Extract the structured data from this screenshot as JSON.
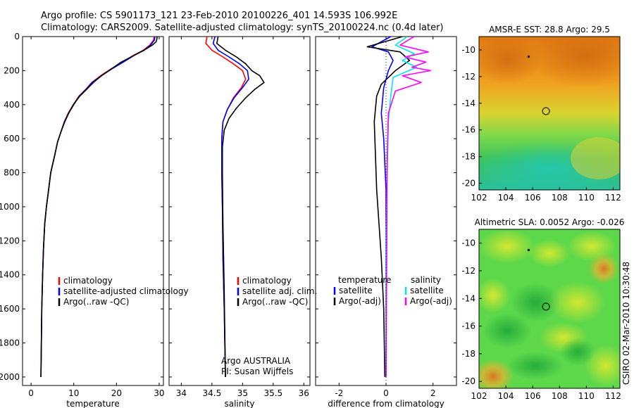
{
  "header": {
    "line1": "Argo profile: CS 5901173_121 23-Feb-2010 20100226_401 14.593S 106.992E",
    "line2": "Climatology: CARS2009. Satellite-adjusted climatology: synTS_20100224.nc (0.4d later)"
  },
  "footer": {
    "credit": "CSIRO 02-Mar-2010 10:30:48"
  },
  "colors": {
    "climatology": "#ff0000",
    "satellite": "#0000ff",
    "argo": "#000000",
    "salinity_satellite": "#00e5ee",
    "salinity_argo": "#ff00ff",
    "zero_line": "#0000ff"
  },
  "chart_data": [
    {
      "id": "temperature",
      "type": "line",
      "xlabel": "temperature",
      "ylabel": "",
      "xlim": [
        -2,
        31
      ],
      "ylim": [
        2050,
        0
      ],
      "xticks": [
        0,
        10,
        20,
        30
      ],
      "yticks": [
        0,
        200,
        400,
        600,
        800,
        1000,
        1200,
        1400,
        1600,
        1800,
        2000
      ],
      "legend": [
        "climatology",
        "satellite-adjusted climatology",
        "Argo(..raw -QC)"
      ],
      "series": [
        {
          "name": "climatology",
          "color": "#ff0000",
          "x": [
            28.8,
            28.7,
            27.8,
            26.3,
            24.0,
            21.4,
            18.7,
            16.3,
            14.2,
            12.8,
            11.2,
            9.9,
            8.7,
            7.8,
            7.0,
            6.2,
            5.5,
            4.6,
            4.1,
            3.6,
            3.2,
            2.9,
            2.7,
            2.5,
            2.4,
            2.3
          ],
          "y": [
            0,
            20,
            50,
            80,
            110,
            150,
            190,
            230,
            270,
            310,
            350,
            400,
            450,
            500,
            560,
            620,
            700,
            800,
            900,
            1000,
            1100,
            1250,
            1400,
            1600,
            1800,
            2000
          ]
        },
        {
          "name": "satellite-adjusted climatology",
          "color": "#0000ff",
          "x": [
            29.0,
            28.9,
            28.0,
            26.5,
            24.2,
            21.6,
            18.9,
            16.5,
            14.3,
            12.9,
            11.3,
            10.0,
            8.8,
            7.8,
            7.0,
            6.2,
            5.5,
            4.6,
            4.1,
            3.6,
            3.2,
            2.9,
            2.7,
            2.5,
            2.4,
            2.3
          ],
          "y": [
            0,
            20,
            50,
            80,
            110,
            150,
            190,
            230,
            270,
            310,
            350,
            400,
            450,
            500,
            560,
            620,
            700,
            800,
            900,
            1000,
            1100,
            1250,
            1400,
            1600,
            1800,
            2000
          ]
        },
        {
          "name": "Argo(..raw -QC)",
          "color": "#000000",
          "x": [
            29.5,
            29.5,
            29.3,
            28.4,
            26.8,
            24.2,
            21.1,
            18.8,
            16.5,
            14.6,
            13.0,
            11.4,
            9.9,
            8.8,
            7.9,
            7.0,
            6.2,
            5.5,
            4.6,
            4.1,
            3.6,
            3.2,
            2.9,
            2.7,
            2.5,
            2.4,
            2.3
          ],
          "y": [
            0,
            10,
            30,
            50,
            75,
            110,
            150,
            190,
            230,
            270,
            310,
            350,
            400,
            450,
            500,
            560,
            620,
            700,
            800,
            900,
            1000,
            1100,
            1250,
            1400,
            1600,
            1800,
            2000
          ]
        }
      ]
    },
    {
      "id": "salinity",
      "type": "line",
      "xlabel": "salinity",
      "ylabel": "",
      "xlim": [
        33.8,
        36.1
      ],
      "ylim": [
        2050,
        0
      ],
      "xticks": [
        34,
        34.5,
        35,
        35.5,
        36
      ],
      "yticks": [
        0,
        200,
        400,
        600,
        800,
        1000,
        1200,
        1400,
        1600,
        1800,
        2000
      ],
      "legend": [
        "climatology",
        "satellite adj. clim.",
        "Argo(..raw -QC)"
      ],
      "annotations": [
        "Argo AUSTRALIA",
        "PI: Susan Wijffels"
      ],
      "series": [
        {
          "name": "climatology",
          "color": "#ff0000",
          "x": [
            34.42,
            34.4,
            34.5,
            34.68,
            34.85,
            35.0,
            35.05,
            34.98,
            34.85,
            34.75,
            34.68,
            34.66,
            34.66,
            34.67,
            34.68,
            34.7,
            34.72
          ],
          "y": [
            0,
            40,
            80,
            120,
            160,
            200,
            250,
            300,
            360,
            430,
            500,
            600,
            800,
            1000,
            1300,
            1600,
            2000
          ]
        },
        {
          "name": "satellite adj. clim.",
          "color": "#0000ff",
          "x": [
            34.55,
            34.52,
            34.6,
            34.78,
            34.95,
            35.08,
            35.1,
            35.0,
            34.86,
            34.75,
            34.68,
            34.66,
            34.66,
            34.67,
            34.68,
            34.7,
            34.72
          ],
          "y": [
            0,
            40,
            80,
            120,
            160,
            200,
            250,
            300,
            360,
            430,
            500,
            600,
            800,
            1000,
            1300,
            1600,
            2000
          ]
        },
        {
          "name": "Argo(..raw -QC)",
          "color": "#000000",
          "x": [
            34.6,
            34.58,
            34.72,
            34.9,
            35.05,
            35.15,
            35.28,
            35.35,
            35.2,
            35.05,
            34.9,
            34.78,
            34.7,
            34.67,
            34.67,
            34.68,
            34.7,
            34.72
          ],
          "y": [
            0,
            40,
            80,
            120,
            160,
            200,
            230,
            270,
            310,
            360,
            420,
            480,
            550,
            650,
            800,
            1100,
            1500,
            2000
          ]
        }
      ]
    },
    {
      "id": "difference",
      "type": "line",
      "xlabel": "difference from climatology",
      "ylabel": "",
      "xlim": [
        -3,
        3
      ],
      "ylim": [
        2050,
        0
      ],
      "xticks": [
        -2,
        0,
        2
      ],
      "yticks": [
        0,
        200,
        400,
        600,
        800,
        1000,
        1200,
        1400,
        1600,
        1800,
        2000
      ],
      "legend_left_heading": "temperature",
      "legend_right_heading": "salinity",
      "legend": [
        "satellite",
        "Argo(-adj)",
        "satellite",
        "Argo(-adj)"
      ],
      "series": [
        {
          "name": "temperature satellite",
          "color": "#0000ff",
          "x": [
            0.2,
            -0.6,
            0.1,
            0.3,
            0.1,
            -0.1,
            -0.2,
            -0.1,
            0.0,
            0.0,
            0.0,
            0.0
          ],
          "y": [
            0,
            60,
            90,
            140,
            200,
            300,
            450,
            600,
            900,
            1200,
            1600,
            2000
          ]
        },
        {
          "name": "temperature Argo(-adj)",
          "color": "#000000",
          "x": [
            0.7,
            -0.8,
            0.6,
            1.0,
            0.4,
            -0.2,
            -0.4,
            -0.5,
            -0.45,
            -0.4,
            -0.3,
            -0.2,
            -0.1,
            -0.05
          ],
          "y": [
            0,
            60,
            90,
            140,
            200,
            280,
            350,
            500,
            700,
            900,
            1100,
            1300,
            1600,
            2000
          ]
        },
        {
          "name": "salinity satellite",
          "color": "#00e5ee",
          "x": [
            0.9,
            0.4,
            1.2,
            0.7,
            1.3,
            0.3,
            0.2,
            0.1,
            0.05,
            0.0,
            0.0
          ],
          "y": [
            0,
            50,
            100,
            140,
            180,
            240,
            350,
            500,
            800,
            1200,
            2000
          ]
        },
        {
          "name": "salinity Argo(-adj)",
          "color": "#ff00ff",
          "x": [
            1.2,
            0.6,
            1.8,
            0.8,
            1.7,
            1.1,
            1.9,
            0.7,
            1.5,
            0.4,
            0.1,
            0.05,
            0.0
          ],
          "y": [
            0,
            50,
            90,
            120,
            150,
            180,
            200,
            230,
            270,
            320,
            450,
            700,
            2000
          ]
        }
      ]
    },
    {
      "id": "sst-map",
      "type": "heatmap",
      "title": "AMSR-E SST: 28.8 Argo: 29.5",
      "xlim": [
        102,
        112.5
      ],
      "ylim": [
        -20.5,
        -9
      ],
      "xticks": [
        102,
        104,
        106,
        108,
        110,
        112
      ],
      "yticks": [
        -10,
        -12,
        -14,
        -16,
        -18,
        -20
      ],
      "marker": {
        "lon": 106.99,
        "lat": -14.59
      },
      "track_point": {
        "lon": 105.7,
        "lat": -10.5
      }
    },
    {
      "id": "sla-map",
      "type": "heatmap",
      "title": "Altimetric SLA: 0.0052 Argo: -0.026",
      "xlim": [
        102,
        112.5
      ],
      "ylim": [
        -20.5,
        -9
      ],
      "xticks": [
        102,
        104,
        106,
        108,
        110,
        112
      ],
      "yticks": [
        -10,
        -12,
        -14,
        -16,
        -18,
        -20
      ],
      "marker": {
        "lon": 106.99,
        "lat": -14.59
      },
      "track_point": {
        "lon": 105.7,
        "lat": -10.5
      }
    }
  ]
}
